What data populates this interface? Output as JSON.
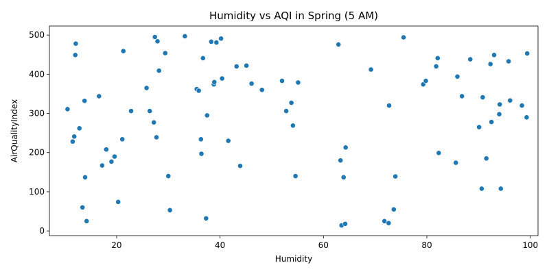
{
  "chart_data": {
    "type": "scatter",
    "title": "Humidity vs AQI in Spring (5 AM)",
    "xlabel": "Humidity",
    "ylabel": "AirQualityIndex",
    "xlim": [
      7,
      101.5
    ],
    "ylim": [
      -12,
      523
    ],
    "xticks": [
      20,
      40,
      60,
      80,
      100
    ],
    "yticks": [
      0,
      100,
      200,
      300,
      400,
      500
    ],
    "grid": false,
    "marker_color": "#1f77b4",
    "x": [
      10.5,
      11.5,
      11.8,
      12.0,
      12.1,
      12.8,
      13.4,
      13.8,
      13.9,
      14.2,
      16.6,
      17.2,
      18.0,
      19.0,
      19.6,
      20.3,
      21.1,
      21.3,
      22.8,
      25.8,
      26.4,
      27.2,
      27.4,
      27.7,
      27.9,
      28.2,
      29.4,
      30.0,
      30.3,
      33.2,
      35.5,
      35.9,
      36.3,
      36.4,
      36.7,
      37.3,
      37.5,
      38.3,
      38.8,
      38.9,
      39.3,
      40.2,
      40.4,
      41.6,
      43.2,
      43.9,
      45.1,
      46.1,
      48.1,
      52.0,
      52.8,
      53.8,
      54.1,
      54.6,
      55.1,
      62.9,
      63.3,
      63.5,
      63.9,
      64.2,
      64.3,
      69.2,
      71.8,
      72.6,
      72.7,
      73.6,
      73.9,
      75.5,
      79.3,
      79.8,
      81.8,
      82.1,
      82.3,
      85.6,
      85.9,
      86.8,
      88.4,
      90.1,
      90.6,
      90.8,
      91.5,
      92.3,
      92.5,
      93.0,
      94.0,
      94.1,
      94.3,
      95.8,
      96.1,
      98.4,
      99.3,
      99.4
    ],
    "y": [
      311,
      228,
      241,
      449,
      478,
      262,
      60,
      332,
      137,
      25,
      344,
      167,
      208,
      177,
      190,
      74,
      234,
      459,
      306,
      365,
      306,
      277,
      495,
      239,
      484,
      409,
      454,
      140,
      53,
      497,
      362,
      358,
      234,
      197,
      441,
      32,
      295,
      483,
      374,
      380,
      481,
      491,
      389,
      230,
      420,
      166,
      422,
      376,
      360,
      383,
      306,
      327,
      269,
      140,
      379,
      476,
      180,
      14,
      137,
      18,
      213,
      412,
      25,
      20,
      320,
      55,
      139,
      494,
      374,
      383,
      420,
      441,
      199,
      174,
      394,
      344,
      438,
      265,
      108,
      341,
      185,
      426,
      278,
      449,
      298,
      323,
      108,
      433,
      333,
      320,
      290,
      453
    ]
  }
}
